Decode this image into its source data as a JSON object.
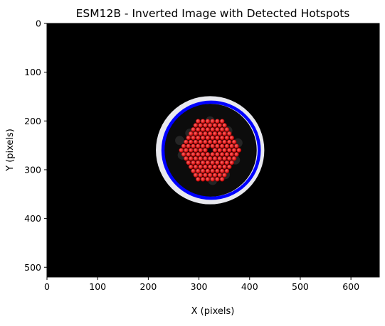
{
  "chart_data": {
    "type": "scatter",
    "title": "ESM12B - Inverted Image with Detected Hotspots",
    "xlabel": "X (pixels)",
    "ylabel": "Y (pixels)",
    "xlim": [
      0,
      656
    ],
    "ylim": [
      520,
      0
    ],
    "x_ticks": [
      0,
      100,
      200,
      300,
      400,
      500,
      600
    ],
    "y_ticks": [
      0,
      100,
      200,
      300,
      400,
      500
    ],
    "grid": false,
    "image": {
      "background_color": "#000000",
      "bright_ring": {
        "cx": 322,
        "cy": 260,
        "r_outer": 107,
        "r_inner": 92,
        "color": "#e8e8ee"
      },
      "fitted_circle": {
        "cx": 324,
        "cy": 260,
        "r": 95,
        "color": "#0000ff"
      }
    },
    "hotspot_color": "#ff1a1a",
    "hotspot_grid": {
      "center": [
        322,
        260
      ],
      "row_spacing": 8.5,
      "col_spacing": 9.5,
      "hex_radius": 65,
      "aspect_x": 0.95,
      "exclude_center_radius": 6
    }
  }
}
